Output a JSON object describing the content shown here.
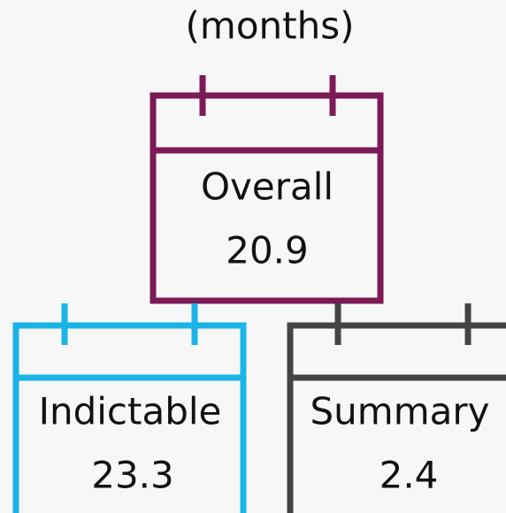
{
  "header": {
    "unit": "(months)"
  },
  "items": [
    {
      "label": "Overall",
      "value": 20.9
    },
    {
      "label": "Indictable",
      "value": 23.3
    },
    {
      "label": "Summary",
      "value": 2.4
    }
  ]
}
